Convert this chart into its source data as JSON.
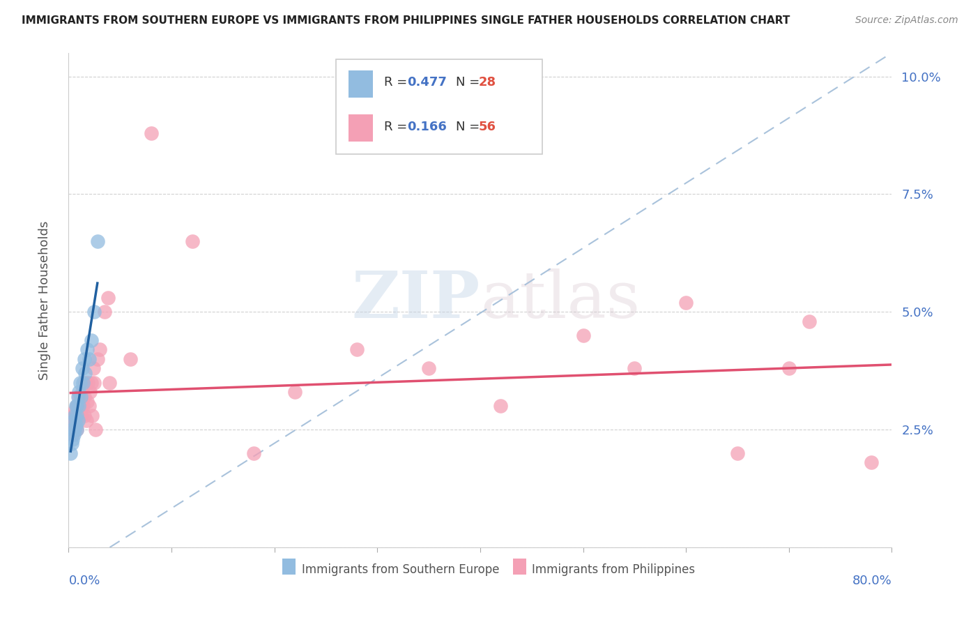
{
  "title": "IMMIGRANTS FROM SOUTHERN EUROPE VS IMMIGRANTS FROM PHILIPPINES SINGLE FATHER HOUSEHOLDS CORRELATION CHART",
  "source": "Source: ZipAtlas.com",
  "ylabel": "Single Father Households",
  "yticks": [
    0.0,
    0.025,
    0.05,
    0.075,
    0.1
  ],
  "ytick_labels": [
    "",
    "2.5%",
    "5.0%",
    "7.5%",
    "10.0%"
  ],
  "xlim": [
    0.0,
    0.8
  ],
  "ylim": [
    0.0,
    0.105
  ],
  "blue_R": 0.477,
  "blue_N": 28,
  "pink_R": 0.166,
  "pink_N": 56,
  "blue_color": "#92bce0",
  "pink_color": "#f4a0b5",
  "blue_line_color": "#2060a0",
  "pink_line_color": "#e05070",
  "diag_line_color": "#a0bcd8",
  "background_color": "#ffffff",
  "grid_color": "#d0d0d0",
  "watermark": "ZIPatlas",
  "blue_scatter_x": [
    0.002,
    0.003,
    0.004,
    0.004,
    0.005,
    0.005,
    0.006,
    0.006,
    0.007,
    0.007,
    0.008,
    0.008,
    0.008,
    0.009,
    0.009,
    0.01,
    0.01,
    0.011,
    0.012,
    0.013,
    0.014,
    0.015,
    0.016,
    0.018,
    0.02,
    0.022,
    0.025,
    0.028
  ],
  "blue_scatter_y": [
    0.02,
    0.022,
    0.023,
    0.025,
    0.024,
    0.027,
    0.025,
    0.028,
    0.026,
    0.03,
    0.025,
    0.028,
    0.03,
    0.027,
    0.032,
    0.03,
    0.033,
    0.035,
    0.032,
    0.038,
    0.035,
    0.04,
    0.037,
    0.042,
    0.04,
    0.044,
    0.05,
    0.065
  ],
  "pink_scatter_x": [
    0.002,
    0.003,
    0.003,
    0.004,
    0.004,
    0.005,
    0.005,
    0.006,
    0.006,
    0.006,
    0.007,
    0.007,
    0.008,
    0.008,
    0.009,
    0.009,
    0.01,
    0.01,
    0.011,
    0.012,
    0.012,
    0.013,
    0.014,
    0.015,
    0.015,
    0.016,
    0.017,
    0.018,
    0.019,
    0.02,
    0.021,
    0.022,
    0.023,
    0.024,
    0.025,
    0.026,
    0.028,
    0.03,
    0.035,
    0.038,
    0.04,
    0.06,
    0.08,
    0.12,
    0.18,
    0.22,
    0.28,
    0.35,
    0.42,
    0.5,
    0.55,
    0.6,
    0.65,
    0.7,
    0.72,
    0.78
  ],
  "pink_scatter_y": [
    0.026,
    0.025,
    0.027,
    0.024,
    0.028,
    0.025,
    0.026,
    0.027,
    0.025,
    0.029,
    0.026,
    0.028,
    0.025,
    0.03,
    0.028,
    0.03,
    0.028,
    0.032,
    0.029,
    0.028,
    0.031,
    0.033,
    0.03,
    0.028,
    0.032,
    0.035,
    0.027,
    0.031,
    0.035,
    0.03,
    0.033,
    0.035,
    0.028,
    0.038,
    0.035,
    0.025,
    0.04,
    0.042,
    0.05,
    0.053,
    0.035,
    0.04,
    0.088,
    0.065,
    0.02,
    0.033,
    0.042,
    0.038,
    0.03,
    0.045,
    0.038,
    0.052,
    0.02,
    0.038,
    0.048,
    0.018
  ]
}
